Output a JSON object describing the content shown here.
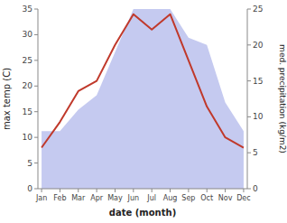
{
  "chart_data": {
    "type": "line",
    "categories": [
      "Jan",
      "Feb",
      "Mar",
      "Apr",
      "May",
      "Jun",
      "Jul",
      "Aug",
      "Sep",
      "Oct",
      "Nov",
      "Dec"
    ],
    "xlabel": "date (month)",
    "ylabel": "max temp (C)",
    "y2label": "med. precipitation (kg/m2)",
    "ylim": [
      0,
      35
    ],
    "yticks": [
      0,
      5,
      10,
      15,
      20,
      25,
      30,
      35
    ],
    "y2lim": [
      0,
      25
    ],
    "y2ticks": [
      0,
      5,
      10,
      15,
      20,
      25
    ],
    "grid": false,
    "series": [
      {
        "type": "area",
        "axis": "y2",
        "color": "#c5caf0",
        "values": [
          8,
          8,
          11,
          13,
          19,
          25,
          25,
          25,
          21,
          20,
          12,
          8
        ]
      },
      {
        "type": "line",
        "color": "#c0392b",
        "values": [
          8,
          13,
          19,
          21,
          28,
          34,
          31,
          34,
          25,
          16,
          10,
          8
        ]
      }
    ]
  }
}
